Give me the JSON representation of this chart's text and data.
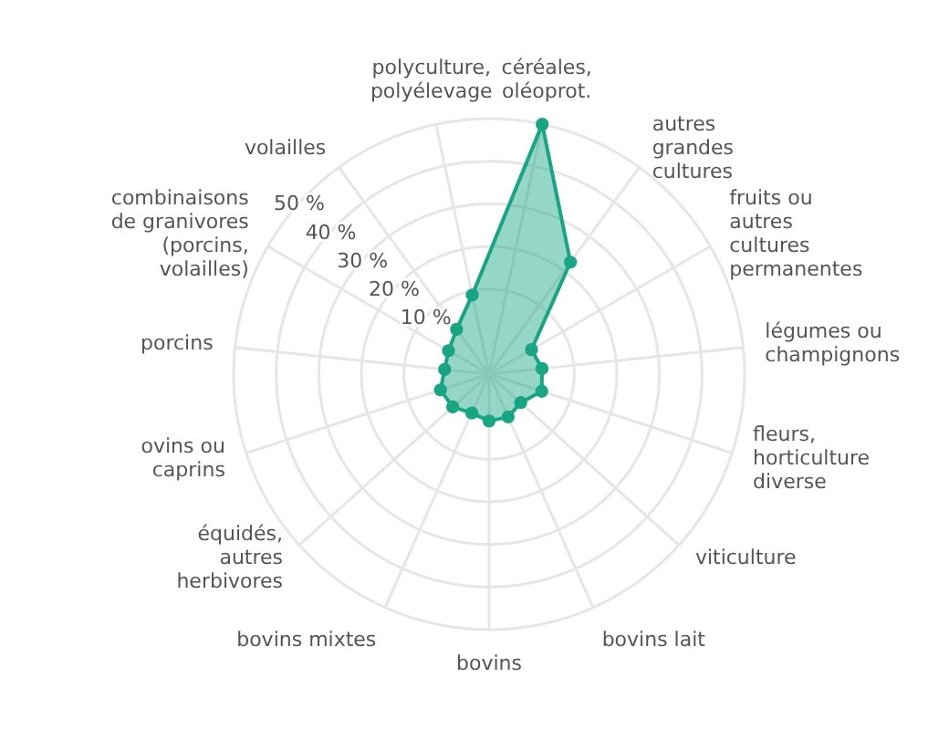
{
  "chart_data": {
    "type": "radar",
    "categories": [
      "céréales, oléoprot.",
      "autres grandes cultures",
      "fruits ou autres cultures permanentes",
      "légumes ou champignons",
      "fleurs, horticulture diverse",
      "viticulture",
      "bovins lait",
      "bovins",
      "bovins mixtes",
      "équidés, autres herbivores",
      "ovins ou caprins",
      "porcins",
      "combinaisons de granivores (porcins, volailles)",
      "volailles",
      "polyculture, polyélevage"
    ],
    "series": [
      {
        "color": "#17a583",
        "values": [
          50,
          22.5,
          1.5,
          2.5,
          3,
          0,
          1,
          1,
          0,
          1.5,
          2,
          0.5,
          1,
          3,
          9
        ]
      }
    ],
    "ylim": [
      -10,
      50
    ],
    "yticks": [
      {
        "value": 10,
        "label": "10 %"
      },
      {
        "value": 20,
        "label": "20 %"
      },
      {
        "value": 30,
        "label": "30 %"
      },
      {
        "value": 40,
        "label": "40 %"
      },
      {
        "value": 50,
        "label": "50 %"
      }
    ],
    "grid": true,
    "marker": "circle"
  }
}
